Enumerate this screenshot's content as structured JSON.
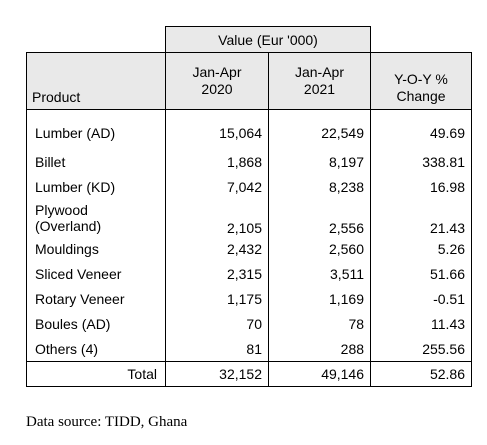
{
  "table": {
    "group_header": "Value (Eur '000)",
    "columns": {
      "product": "Product",
      "period1_line1": "Jan-Apr",
      "period1_line2": "2020",
      "period2_line1": "Jan-Apr",
      "period2_line2": "2021",
      "change_line1": "Y-O-Y %",
      "change_line2": "Change"
    },
    "rows": [
      {
        "product": "Lumber (AD)",
        "v2020": "15,064",
        "v2021": "22,549",
        "change": "49.69"
      },
      {
        "product": "Billet",
        "v2020": "1,868",
        "v2021": "8,197",
        "change": "338.81"
      },
      {
        "product": "Lumber (KD)",
        "v2020": "7,042",
        "v2021": "8,238",
        "change": "16.98"
      },
      {
        "product_line1": "Plywood",
        "product_line2": "(Overland)",
        "v2020": "2,105",
        "v2021": "2,556",
        "change": "21.43"
      },
      {
        "product": "Mouldings",
        "v2020": "2,432",
        "v2021": "2,560",
        "change": "5.26"
      },
      {
        "product": "Sliced Veneer",
        "v2020": "2,315",
        "v2021": "3,511",
        "change": "51.66"
      },
      {
        "product": "Rotary Veneer",
        "v2020": "1,175",
        "v2021": "1,169",
        "change": "-0.51"
      },
      {
        "product": "Boules (AD)",
        "v2020": "70",
        "v2021": "78",
        "change": "11.43"
      },
      {
        "product": "Others (4)",
        "v2020": "81",
        "v2021": "288",
        "change": "255.56"
      }
    ],
    "total": {
      "label": "Total",
      "v2020": "32,152",
      "v2021": "49,146",
      "change": "52.86"
    }
  },
  "source_note": "Data source: TIDD, Ghana"
}
